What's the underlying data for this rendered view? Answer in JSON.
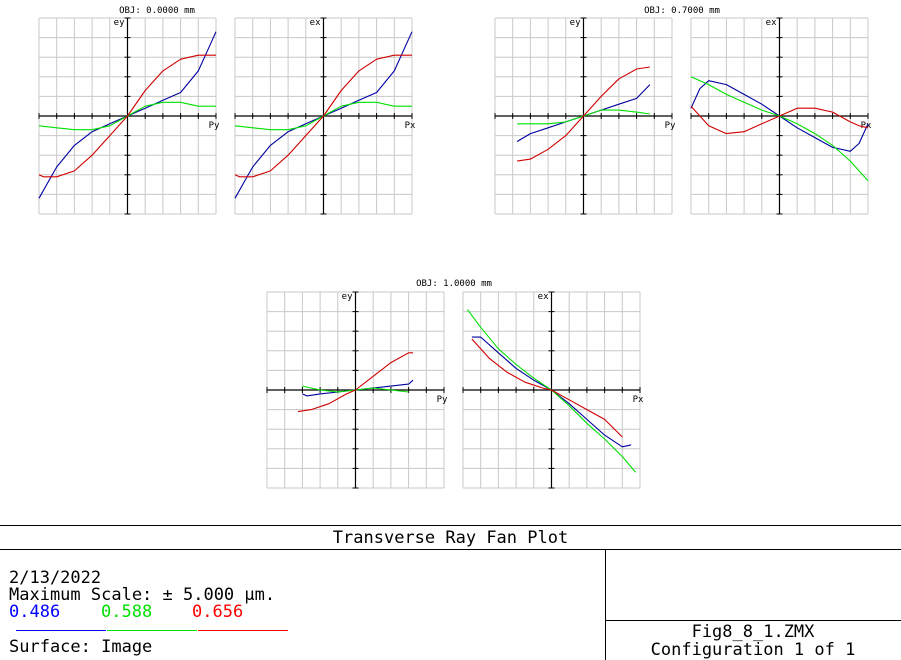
{
  "plot_title": "Transverse Ray Fan Plot",
  "date": "2/13/2022",
  "max_scale": "Maximum Scale: ± 5.000 µm.",
  "surface": "Surface: Image",
  "file": "Fig8_8_1.ZMX",
  "config": "Configuration 1 of 1",
  "wavelengths": [
    {
      "label": "0.486",
      "color": "#0000ff"
    },
    {
      "label": "0.588",
      "color": "#00e000"
    },
    {
      "label": "0.656",
      "color": "#ff0000"
    }
  ],
  "colors": {
    "blue": "#0000a0",
    "green": "#00e000",
    "red": "#d00000",
    "grid": "#c8c8c8"
  },
  "chart_data": [
    {
      "type": "line",
      "title": "OBJ: 0.0000 mm",
      "panels": [
        {
          "ylabel": "ey",
          "xlabel": "Py",
          "xlim": [
            -1,
            1
          ],
          "ylim": [
            -5,
            5
          ],
          "series": [
            {
              "name": "0.486",
              "x": [
                -1,
                -0.9,
                -0.8,
                -0.6,
                -0.4,
                -0.2,
                0,
                0.2,
                0.4,
                0.6,
                0.8,
                0.9,
                1
              ],
              "y": [
                -4.2,
                -3.4,
                -2.6,
                -1.5,
                -0.8,
                -0.4,
                0,
                0.4,
                0.8,
                1.2,
                2.3,
                3.3,
                4.3
              ]
            },
            {
              "name": "0.588",
              "x": [
                -1,
                -0.8,
                -0.6,
                -0.4,
                -0.2,
                0,
                0.2,
                0.4,
                0.6,
                0.8,
                1
              ],
              "y": [
                -0.5,
                -0.6,
                -0.7,
                -0.7,
                -0.5,
                0,
                0.5,
                0.7,
                0.7,
                0.5,
                0.5
              ]
            },
            {
              "name": "0.656",
              "x": [
                -1,
                -0.95,
                -0.8,
                -0.6,
                -0.4,
                -0.2,
                0,
                0.2,
                0.4,
                0.6,
                0.8,
                0.95,
                1
              ],
              "y": [
                -3.0,
                -3.1,
                -3.1,
                -2.8,
                -2.0,
                -1.0,
                0,
                1.3,
                2.3,
                2.9,
                3.1,
                3.1,
                3.1
              ]
            }
          ]
        },
        {
          "ylabel": "ex",
          "xlabel": "Px",
          "xlim": [
            -1,
            1
          ],
          "ylim": [
            -5,
            5
          ],
          "series": [
            {
              "name": "0.486",
              "x": [
                -1,
                -0.9,
                -0.8,
                -0.6,
                -0.4,
                -0.2,
                0,
                0.2,
                0.4,
                0.6,
                0.8,
                0.9,
                1
              ],
              "y": [
                -4.2,
                -3.4,
                -2.6,
                -1.5,
                -0.8,
                -0.4,
                0,
                0.4,
                0.8,
                1.2,
                2.3,
                3.3,
                4.3
              ]
            },
            {
              "name": "0.588",
              "x": [
                -1,
                -0.8,
                -0.6,
                -0.4,
                -0.2,
                0,
                0.2,
                0.4,
                0.6,
                0.8,
                1
              ],
              "y": [
                -0.5,
                -0.6,
                -0.7,
                -0.7,
                -0.5,
                0,
                0.5,
                0.7,
                0.7,
                0.5,
                0.5
              ]
            },
            {
              "name": "0.656",
              "x": [
                -1,
                -0.95,
                -0.8,
                -0.6,
                -0.4,
                -0.2,
                0,
                0.2,
                0.4,
                0.6,
                0.8,
                0.95,
                1
              ],
              "y": [
                -3.0,
                -3.1,
                -3.1,
                -2.8,
                -2.0,
                -1.0,
                0,
                1.3,
                2.3,
                2.9,
                3.1,
                3.1,
                3.1
              ]
            }
          ]
        }
      ]
    },
    {
      "type": "line",
      "title": "OBJ: 0.7000 mm",
      "panels": [
        {
          "ylabel": "ey",
          "xlabel": "Py",
          "xlim": [
            -1,
            1
          ],
          "ylim": [
            -5,
            5
          ],
          "series": [
            {
              "name": "0.486",
              "x": [
                -0.75,
                -0.6,
                -0.4,
                -0.2,
                0,
                0.2,
                0.4,
                0.6,
                0.75
              ],
              "y": [
                -1.3,
                -0.9,
                -0.6,
                -0.3,
                0,
                0.3,
                0.6,
                0.9,
                1.6
              ]
            },
            {
              "name": "0.588",
              "x": [
                -0.75,
                -0.6,
                -0.4,
                -0.2,
                0,
                0.2,
                0.4,
                0.6,
                0.75
              ],
              "y": [
                -0.4,
                -0.4,
                -0.4,
                -0.3,
                0,
                0.3,
                0.3,
                0.2,
                0.1
              ]
            },
            {
              "name": "0.656",
              "x": [
                -0.75,
                -0.6,
                -0.4,
                -0.2,
                0,
                0.2,
                0.4,
                0.6,
                0.75
              ],
              "y": [
                -2.3,
                -2.2,
                -1.7,
                -1.0,
                0,
                1.0,
                1.9,
                2.4,
                2.5
              ]
            }
          ]
        },
        {
          "ylabel": "ex",
          "xlabel": "Px",
          "xlim": [
            -1,
            1
          ],
          "ylim": [
            -5,
            5
          ],
          "series": [
            {
              "name": "0.486",
              "x": [
                -1,
                -0.9,
                -0.8,
                -0.6,
                -0.4,
                -0.2,
                0,
                0.2,
                0.4,
                0.6,
                0.8,
                0.9,
                1
              ],
              "y": [
                0.4,
                1.4,
                1.8,
                1.6,
                1.1,
                0.6,
                0,
                -0.6,
                -1.1,
                -1.6,
                -1.8,
                -1.4,
                -0.4
              ]
            },
            {
              "name": "0.588",
              "x": [
                -1,
                -0.8,
                -0.6,
                -0.4,
                -0.2,
                0,
                0.2,
                0.4,
                0.6,
                0.8,
                1
              ],
              "y": [
                2.0,
                1.6,
                1.1,
                0.7,
                0.3,
                0,
                -0.4,
                -0.9,
                -1.5,
                -2.3,
                -3.3
              ]
            },
            {
              "name": "0.656",
              "x": [
                -1,
                -0.9,
                -0.8,
                -0.6,
                -0.4,
                -0.2,
                0,
                0.2,
                0.4,
                0.6,
                0.8,
                0.9,
                1
              ],
              "y": [
                0.5,
                0,
                -0.5,
                -0.9,
                -0.8,
                -0.4,
                0,
                0.4,
                0.4,
                0.2,
                -0.3,
                -0.5,
                -0.6
              ]
            }
          ]
        }
      ]
    },
    {
      "type": "line",
      "title": "OBJ: 1.0000 mm",
      "panels": [
        {
          "ylabel": "ey",
          "xlabel": "Py",
          "xlim": [
            -1,
            1
          ],
          "ylim": [
            -5,
            5
          ],
          "series": [
            {
              "name": "0.486",
              "x": [
                -0.6,
                -0.55,
                -0.4,
                -0.2,
                0,
                0.2,
                0.4,
                0.6,
                0.65
              ],
              "y": [
                -0.2,
                -0.3,
                -0.2,
                -0.1,
                0,
                0.1,
                0.2,
                0.3,
                0.5
              ]
            },
            {
              "name": "0.588",
              "x": [
                -0.6,
                -0.4,
                -0.2,
                0,
                0.2,
                0.4,
                0.6
              ],
              "y": [
                0.2,
                0,
                -0.1,
                0,
                0.1,
                0,
                -0.1
              ]
            },
            {
              "name": "0.656",
              "x": [
                -0.65,
                -0.5,
                -0.3,
                -0.1,
                0,
                0.2,
                0.4,
                0.6,
                0.65
              ],
              "y": [
                -1.1,
                -1.0,
                -0.7,
                -0.2,
                0,
                0.7,
                1.4,
                1.9,
                1.9
              ]
            }
          ]
        },
        {
          "ylabel": "ex",
          "xlabel": "Px",
          "xlim": [
            -1,
            1
          ],
          "ylim": [
            -5,
            5
          ],
          "series": [
            {
              "name": "0.486",
              "x": [
                -0.9,
                -0.8,
                -0.6,
                -0.4,
                -0.2,
                0,
                0.2,
                0.4,
                0.6,
                0.8,
                0.9
              ],
              "y": [
                2.7,
                2.7,
                1.9,
                1.1,
                0.5,
                0,
                -0.7,
                -1.5,
                -2.3,
                -2.9,
                -2.8
              ]
            },
            {
              "name": "0.588",
              "x": [
                -0.95,
                -0.8,
                -0.6,
                -0.4,
                -0.2,
                0,
                0.2,
                0.4,
                0.6,
                0.8,
                0.95
              ],
              "y": [
                4.1,
                3.2,
                2.1,
                1.3,
                0.6,
                0,
                -0.8,
                -1.7,
                -2.5,
                -3.4,
                -4.2
              ]
            },
            {
              "name": "0.656",
              "x": [
                -0.9,
                -0.7,
                -0.5,
                -0.3,
                -0.1,
                0,
                0.2,
                0.4,
                0.6,
                0.8
              ],
              "y": [
                2.6,
                1.6,
                0.9,
                0.4,
                0.1,
                0,
                -0.5,
                -1.0,
                -1.5,
                -2.4
              ]
            }
          ]
        }
      ]
    }
  ]
}
